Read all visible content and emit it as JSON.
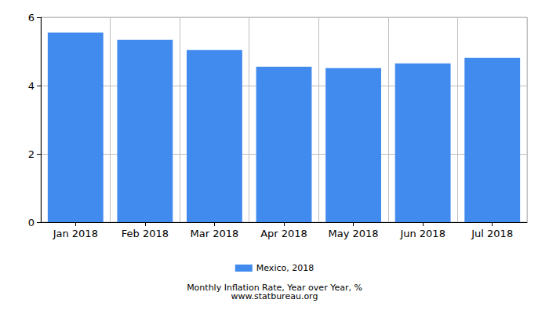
{
  "chart_data": {
    "type": "bar",
    "title": "Monthly Inflation Rate, Year over Year, %",
    "subtitle": "www.statbureau.org",
    "categories": [
      "Jan 2018",
      "Feb 2018",
      "Mar 2018",
      "Apr 2018",
      "May 2018",
      "Jun 2018",
      "Jul 2018"
    ],
    "series": [
      {
        "name": "Mexico, 2018",
        "color": "#428bee",
        "values": [
          5.55,
          5.34,
          5.04,
          4.55,
          4.51,
          4.65,
          4.81
        ]
      }
    ],
    "ylim": [
      0,
      6
    ],
    "yticks": [
      0,
      2,
      4,
      6
    ],
    "grid": true,
    "legend": "bottom"
  }
}
